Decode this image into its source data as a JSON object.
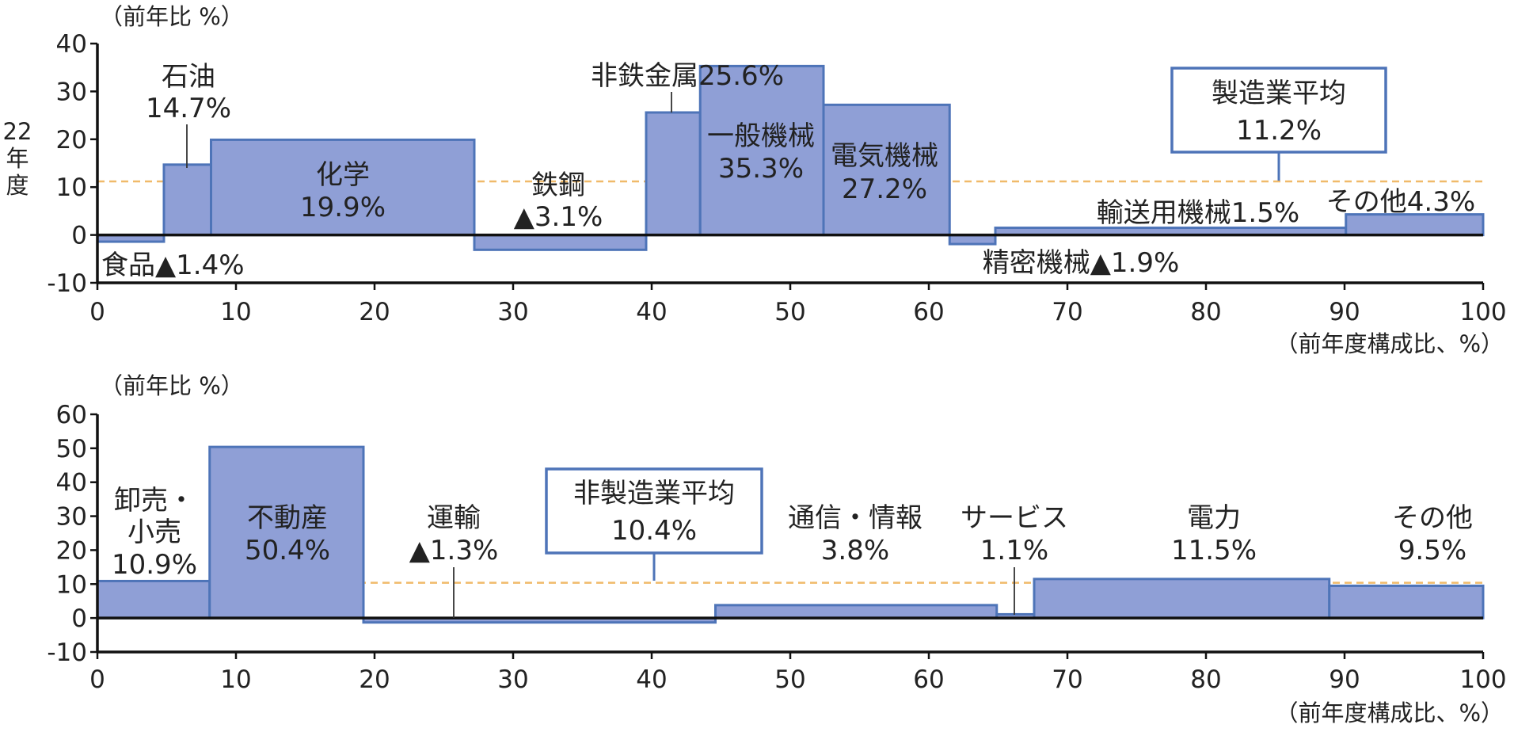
{
  "chart_data": [
    {
      "type": "bar",
      "variable_width": true,
      "ylabel": "（前年比 %）",
      "xlabel": "（前年度構成比、%）",
      "side_label": "22年度",
      "xlim": [
        0,
        100
      ],
      "ylim": [
        -10,
        40
      ],
      "xticks": [
        0,
        10,
        20,
        30,
        40,
        50,
        60,
        70,
        80,
        90,
        100
      ],
      "yticks": [
        -10,
        0,
        10,
        20,
        30,
        40
      ],
      "average": {
        "name": "製造業平均",
        "value_text": "11.2%",
        "value": 11.2
      },
      "bars": [
        {
          "name": "食品",
          "value_text": "▲1.4%",
          "x0": 0,
          "x1": 4.8,
          "value": -1.4
        },
        {
          "name": "石油",
          "value_text": "14.7%",
          "x0": 4.8,
          "x1": 8.2,
          "value": 14.7
        },
        {
          "name": "化学",
          "value_text": "19.9%",
          "x0": 8.2,
          "x1": 27.2,
          "value": 19.9
        },
        {
          "name": "鉄鋼",
          "value_text": "▲3.1%",
          "x0": 27.2,
          "x1": 39.6,
          "value": -3.1
        },
        {
          "name": "非鉄金属",
          "value_text": "25.6%",
          "x0": 39.6,
          "x1": 43.5,
          "value": 25.6
        },
        {
          "name": "一般機械",
          "value_text": "35.3%",
          "x0": 43.5,
          "x1": 52.4,
          "value": 35.3
        },
        {
          "name": "電気機械",
          "value_text": "27.2%",
          "x0": 52.4,
          "x1": 61.5,
          "value": 27.2
        },
        {
          "name": "精密機械",
          "value_text": "▲1.9%",
          "x0": 61.5,
          "x1": 64.8,
          "value": -1.9
        },
        {
          "name": "輸送用機械",
          "value_text": "1.5%",
          "x0": 64.8,
          "x1": 90.1,
          "value": 1.5
        },
        {
          "name": "その他",
          "value_text": "4.3%",
          "x0": 90.1,
          "x1": 100,
          "value": 4.3
        }
      ]
    },
    {
      "type": "bar",
      "variable_width": true,
      "ylabel": "（前年比 %）",
      "xlabel": "（前年度構成比、%）",
      "xlim": [
        0,
        100
      ],
      "ylim": [
        -10,
        60
      ],
      "xticks": [
        0,
        10,
        20,
        30,
        40,
        50,
        60,
        70,
        80,
        90,
        100
      ],
      "yticks": [
        -10,
        0,
        10,
        20,
        30,
        40,
        50,
        60
      ],
      "average": {
        "name": "非製造業平均",
        "value_text": "10.4%",
        "value": 10.4
      },
      "bars": [
        {
          "name": "卸売・小売",
          "value_text": "10.9%",
          "x0": 0,
          "x1": 8.1,
          "value": 10.9
        },
        {
          "name": "不動産",
          "value_text": "50.4%",
          "x0": 8.1,
          "x1": 19.2,
          "value": 50.4
        },
        {
          "name": "運輸",
          "value_text": "▲1.3%",
          "x0": 19.2,
          "x1": 44.6,
          "value": -1.3
        },
        {
          "name": "通信・情報",
          "value_text": "3.8%",
          "x0": 44.6,
          "x1": 64.9,
          "value": 3.8
        },
        {
          "name": "サービス",
          "value_text": "1.1%",
          "x0": 64.9,
          "x1": 67.6,
          "value": 1.1
        },
        {
          "name": "電力",
          "value_text": "11.5%",
          "x0": 67.6,
          "x1": 88.9,
          "value": 11.5
        },
        {
          "name": "その他",
          "value_text": "9.5%",
          "x0": 88.9,
          "x1": 100,
          "value": 9.5
        }
      ]
    }
  ]
}
